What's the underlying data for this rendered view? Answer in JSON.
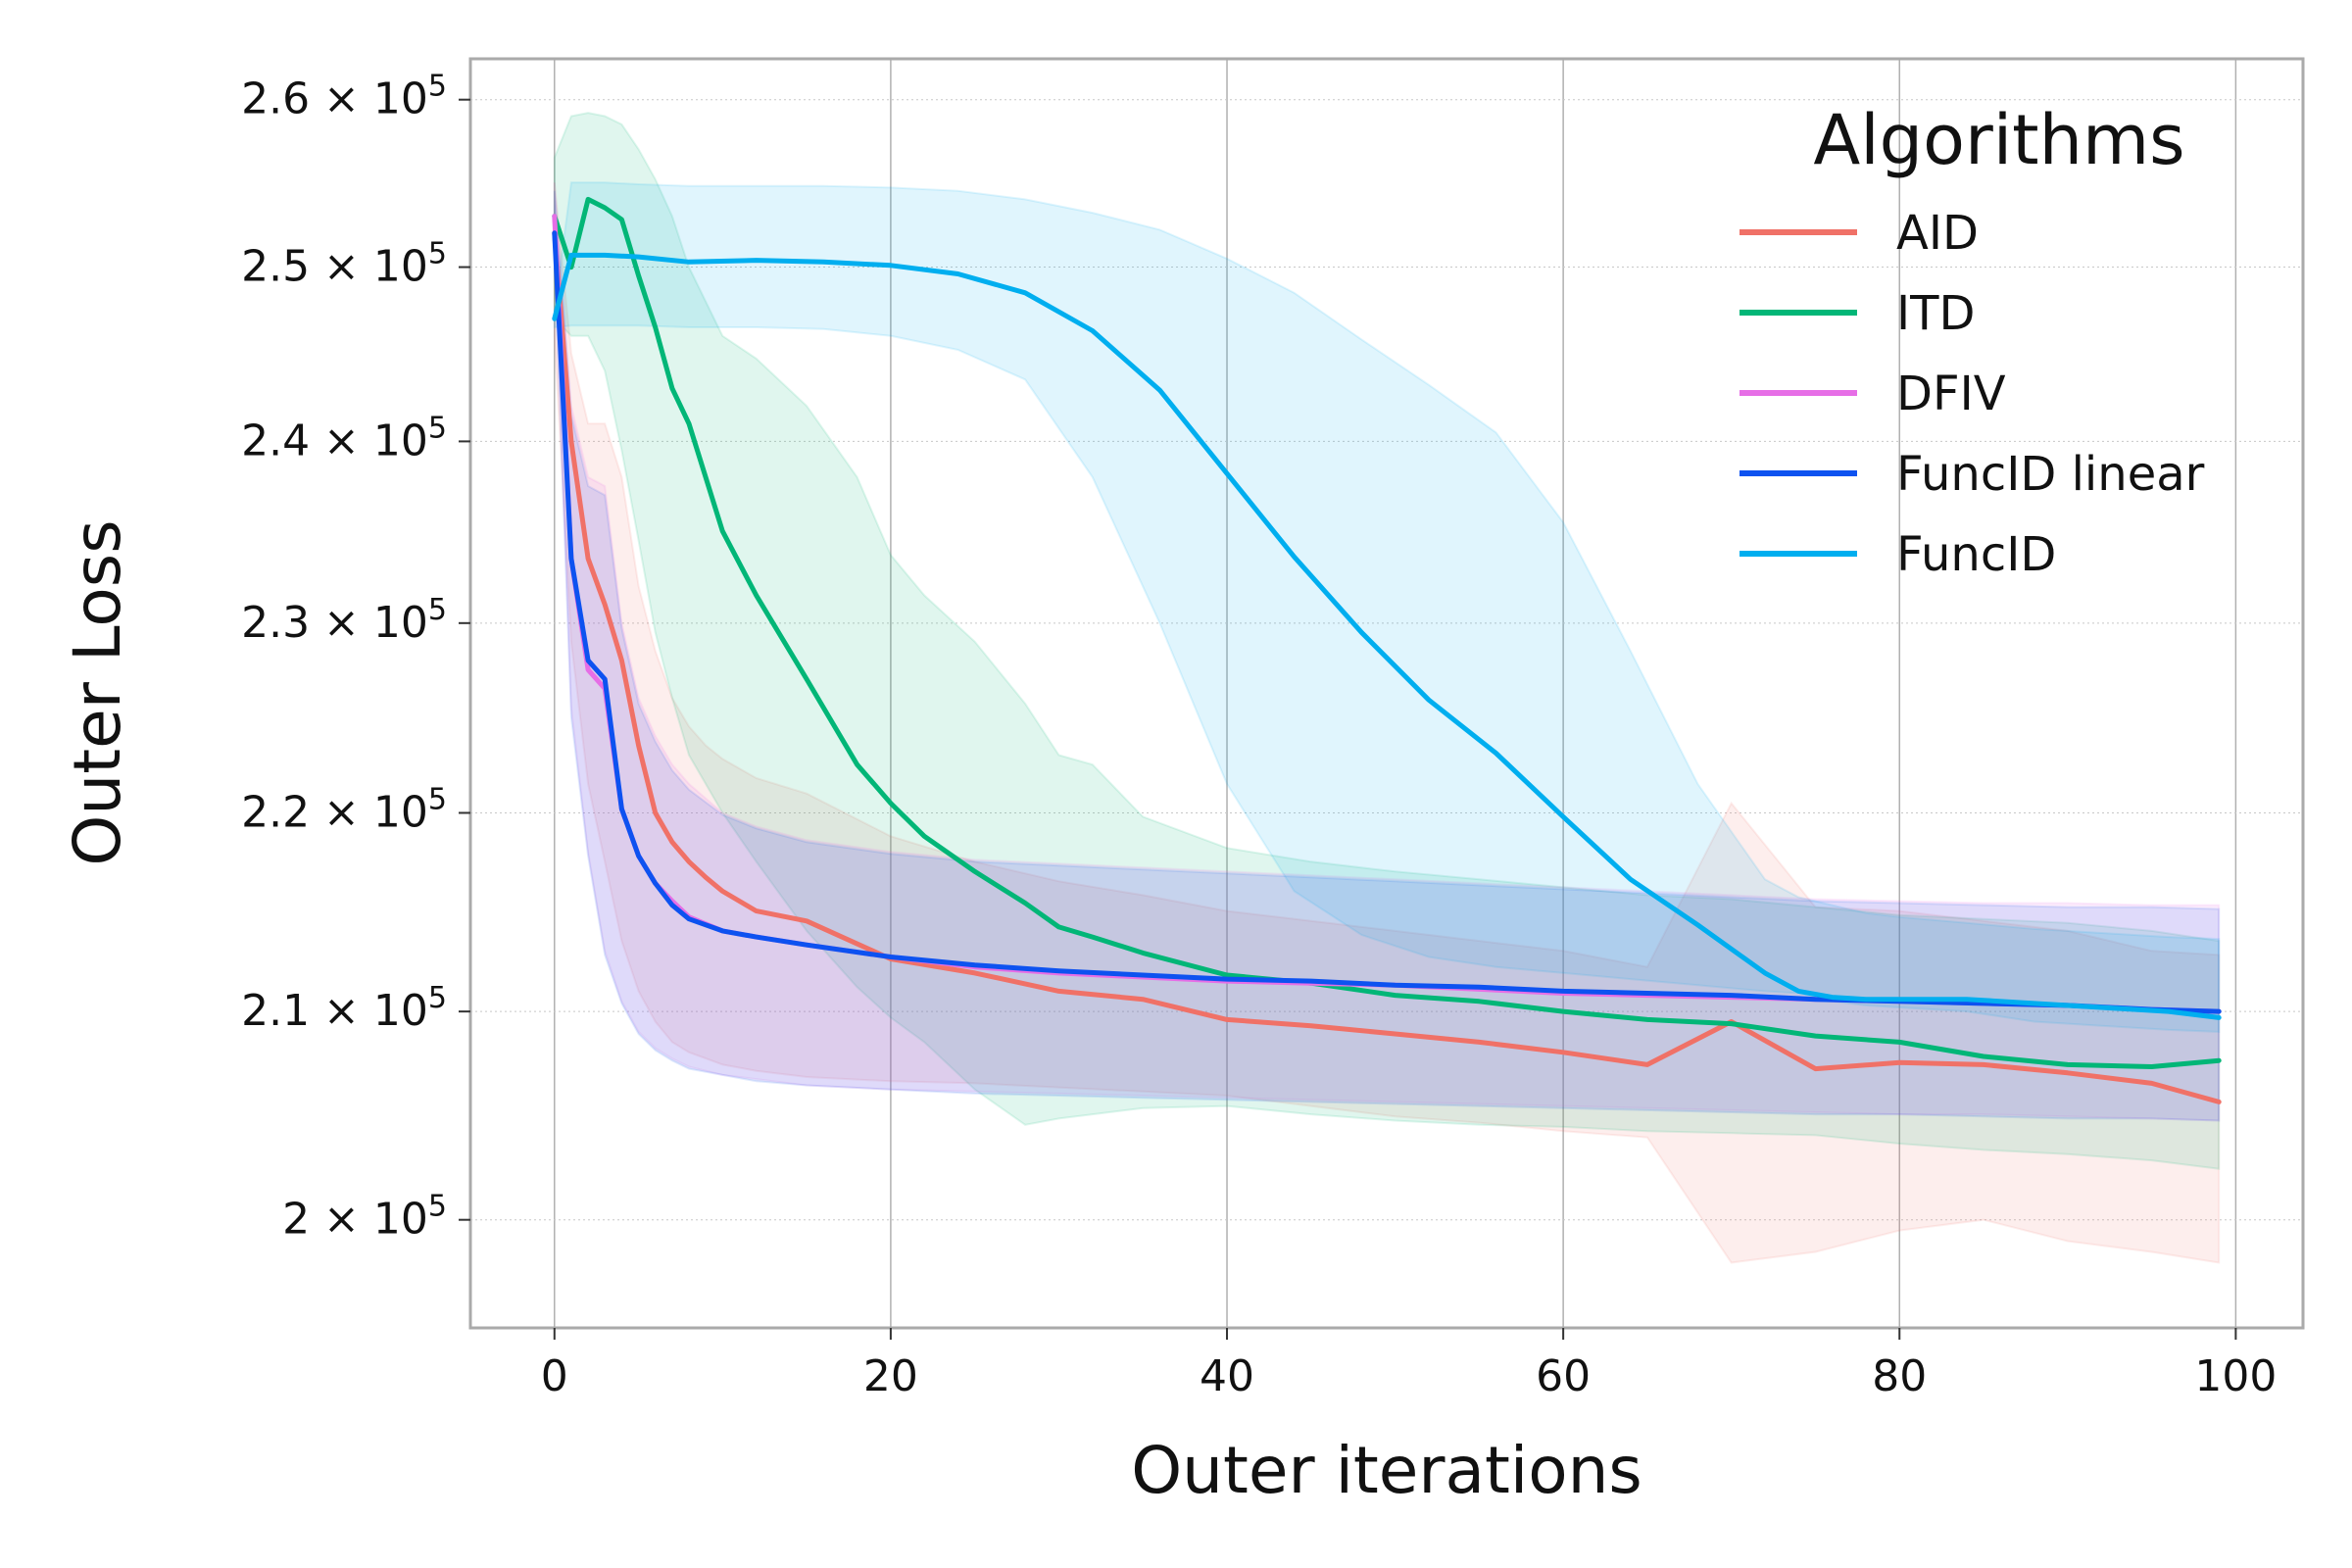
{
  "chart_data": {
    "type": "line",
    "title": "",
    "xlabel": "Outer iterations",
    "ylabel": "Outer Loss",
    "xlim": [
      -5,
      104
    ],
    "ylim": [
      195000,
      262500
    ],
    "y_scale": "log",
    "grid": true,
    "legend_title": "Algorithms",
    "legend_position": "top-right",
    "x_ticks": [
      0,
      20,
      40,
      60,
      80,
      100
    ],
    "x_tick_labels": [
      "0",
      "20",
      "40",
      "60",
      "80",
      "100"
    ],
    "y_ticks": [
      200000,
      210000,
      220000,
      230000,
      240000,
      250000,
      260000
    ],
    "y_tick_labels": [
      {
        "mant": "2",
        "exp": "5"
      },
      {
        "mant": "2.1",
        "exp": "5"
      },
      {
        "mant": "2.2",
        "exp": "5"
      },
      {
        "mant": "2.3",
        "exp": "5"
      },
      {
        "mant": "2.4",
        "exp": "5"
      },
      {
        "mant": "2.5",
        "exp": "5"
      },
      {
        "mant": "2.6",
        "exp": "5"
      }
    ],
    "series": [
      {
        "name": "AID",
        "color": "#f07167",
        "x": [
          0,
          1,
          2,
          3,
          4,
          5,
          6,
          7,
          8,
          9,
          10,
          12,
          15,
          20,
          25,
          30,
          35,
          40,
          45,
          50,
          55,
          60,
          65,
          70,
          75,
          80,
          85,
          90,
          95,
          99
        ],
        "mean": [
          252000,
          240000,
          233500,
          231000,
          228000,
          223500,
          220000,
          218500,
          217500,
          216700,
          216000,
          215000,
          214500,
          212600,
          211900,
          211000,
          210600,
          209600,
          209300,
          208900,
          208500,
          208000,
          207400,
          209500,
          207200,
          207500,
          207400,
          207000,
          206500,
          205600
        ],
        "lower": [
          246000,
          229000,
          221500,
          217500,
          213500,
          211000,
          209500,
          208500,
          208000,
          207700,
          207400,
          207100,
          206800,
          206600,
          206500,
          206300,
          206100,
          205900,
          205400,
          204900,
          204600,
          204200,
          203900,
          198000,
          198500,
          199500,
          200000,
          199000,
          198500,
          198000
        ],
        "upper": [
          255000,
          245000,
          241000,
          241000,
          238000,
          232000,
          228500,
          226000,
          224500,
          223500,
          222800,
          221800,
          221000,
          218800,
          217500,
          216500,
          215800,
          215000,
          214500,
          214000,
          213500,
          213000,
          212200,
          220500,
          215200,
          215000,
          214500,
          214000,
          213000,
          212800
        ]
      },
      {
        "name": "ITD",
        "color": "#02b677",
        "x": [
          0,
          1,
          2,
          3,
          4,
          5,
          6,
          7,
          8,
          10,
          12,
          15,
          18,
          20,
          22,
          25,
          28,
          30,
          32,
          35,
          40,
          45,
          50,
          55,
          60,
          65,
          70,
          75,
          80,
          85,
          90,
          95,
          99
        ],
        "mean": [
          253000,
          250000,
          254000,
          253500,
          252800,
          249500,
          246500,
          243000,
          241000,
          235000,
          231500,
          227000,
          222500,
          220500,
          218800,
          217000,
          215400,
          214200,
          213700,
          212900,
          211800,
          211400,
          210800,
          210500,
          210000,
          209600,
          209400,
          208800,
          208500,
          207800,
          207400,
          207300,
          207600
        ],
        "lower": [
          247000,
          246000,
          246000,
          244000,
          239500,
          234500,
          229500,
          226000,
          223000,
          220000,
          217500,
          214000,
          211200,
          209700,
          208500,
          206200,
          204500,
          204800,
          205000,
          205300,
          205400,
          205000,
          204700,
          204500,
          204400,
          204200,
          204100,
          204000,
          203600,
          203300,
          203100,
          202800,
          202400
        ],
        "upper": [
          256500,
          259000,
          259200,
          259000,
          258500,
          257000,
          255200,
          253000,
          250000,
          246000,
          244700,
          242000,
          238000,
          233700,
          231500,
          229000,
          225700,
          223000,
          222500,
          219800,
          218200,
          217500,
          217000,
          216600,
          216200,
          215800,
          215600,
          215200,
          214800,
          214600,
          214400,
          214000,
          213500
        ]
      },
      {
        "name": "DFIV",
        "color": "#e66ee6",
        "x": [
          0,
          1,
          2,
          3,
          4,
          5,
          6,
          7,
          8,
          10,
          12,
          15,
          20,
          25,
          30,
          35,
          40,
          45,
          50,
          55,
          60,
          65,
          70,
          75,
          80,
          85,
          90,
          95,
          99
        ],
        "mean": [
          253000,
          233500,
          227500,
          226500,
          220200,
          217800,
          216400,
          215500,
          214700,
          214000,
          213700,
          213300,
          212700,
          212200,
          211900,
          211700,
          211500,
          211400,
          211300,
          211100,
          210900,
          210800,
          210700,
          210600,
          210500,
          210400,
          210300,
          210100,
          210000
        ],
        "lower": [
          251000,
          225500,
          218000,
          213000,
          210500,
          209000,
          208200,
          207700,
          207300,
          206900,
          206700,
          206400,
          206200,
          206100,
          206000,
          205900,
          205800,
          205700,
          205600,
          205500,
          205400,
          205300,
          205200,
          205100,
          205000,
          205000,
          204900,
          204800,
          204700
        ],
        "upper": [
          255000,
          242000,
          238000,
          237500,
          230000,
          226000,
          224000,
          222500,
          221500,
          220000,
          219300,
          218600,
          218000,
          217600,
          217400,
          217200,
          217000,
          216800,
          216600,
          216400,
          216200,
          216000,
          215800,
          215600,
          215500,
          215400,
          215400,
          215300,
          215300
        ]
      },
      {
        "name": "FuncID linear",
        "color": "#0d52f0",
        "x": [
          0,
          1,
          2,
          3,
          4,
          5,
          6,
          7,
          8,
          10,
          12,
          15,
          20,
          25,
          30,
          35,
          40,
          45,
          50,
          55,
          60,
          65,
          70,
          75,
          80,
          85,
          90,
          95,
          99
        ],
        "mean": [
          252000,
          233500,
          228000,
          227000,
          220200,
          217800,
          216400,
          215300,
          214600,
          214000,
          213700,
          213300,
          212700,
          212300,
          212000,
          211800,
          211600,
          211500,
          211300,
          211200,
          211000,
          210900,
          210800,
          210600,
          210500,
          210400,
          210300,
          210100,
          210000
        ],
        "lower": [
          250500,
          225000,
          217800,
          212800,
          210400,
          208900,
          208100,
          207600,
          207200,
          206900,
          206600,
          206400,
          206200,
          206000,
          205900,
          205800,
          205700,
          205600,
          205500,
          205400,
          205300,
          205200,
          205100,
          205000,
          205000,
          204900,
          204800,
          204800,
          204700
        ],
        "upper": [
          254500,
          241500,
          237500,
          237000,
          229700,
          225700,
          223700,
          222200,
          221200,
          219900,
          219200,
          218500,
          217900,
          217500,
          217300,
          217100,
          216900,
          216700,
          216500,
          216300,
          216100,
          215900,
          215700,
          215500,
          215400,
          215300,
          215200,
          215200,
          215100
        ]
      },
      {
        "name": "FuncID",
        "color": "#00aeef",
        "x": [
          0,
          1,
          3,
          5,
          8,
          12,
          16,
          20,
          24,
          28,
          32,
          36,
          40,
          44,
          48,
          52,
          56,
          60,
          64,
          68,
          72,
          74,
          76,
          78,
          80,
          84,
          88,
          92,
          96,
          99
        ],
        "mean": [
          247000,
          250700,
          250700,
          250600,
          250300,
          250400,
          250300,
          250100,
          249600,
          248500,
          246300,
          242900,
          238200,
          233600,
          229500,
          225900,
          223100,
          219800,
          216600,
          214300,
          211900,
          211000,
          210700,
          210600,
          210600,
          210600,
          210400,
          210200,
          210000,
          209700
        ],
        "lower": [
          246500,
          246600,
          246600,
          246600,
          246500,
          246500,
          246400,
          246000,
          245200,
          243500,
          238000,
          230000,
          221500,
          216000,
          213800,
          212700,
          212200,
          211900,
          211600,
          211300,
          211000,
          210900,
          210500,
          210300,
          210200,
          210000,
          209500,
          209300,
          209100,
          209000
        ],
        "upper": [
          247500,
          255000,
          255000,
          254900,
          254800,
          254800,
          254800,
          254700,
          254500,
          254000,
          253200,
          252200,
          250500,
          248500,
          245800,
          243200,
          240500,
          235500,
          228500,
          221500,
          216600,
          215700,
          215300,
          214900,
          214700,
          214400,
          214100,
          213900,
          213700,
          213600
        ]
      }
    ]
  }
}
